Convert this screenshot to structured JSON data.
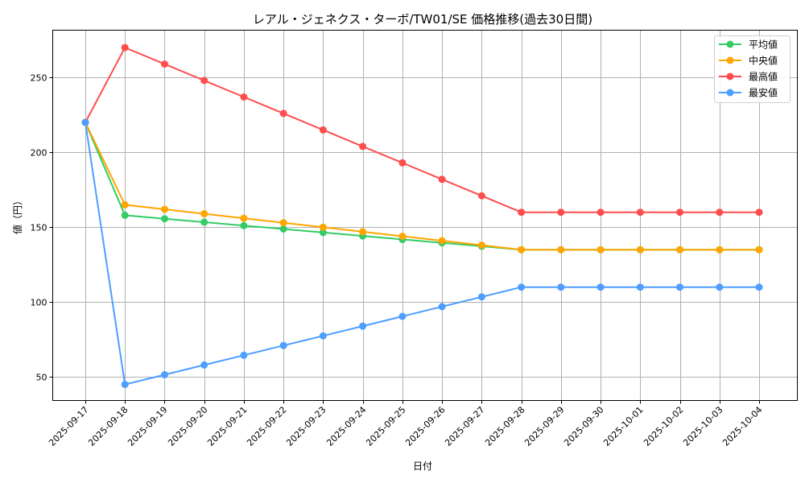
{
  "chart_data": {
    "type": "line",
    "title": "レアル・ジェネクス・ターボ/TW01/SE 価格推移(過去30日間)",
    "xlabel": "日付",
    "ylabel": "値（円）",
    "ylim": [
      34,
      281
    ],
    "yticks": [
      50,
      100,
      150,
      200,
      250
    ],
    "grid": true,
    "legend_position": "upper right",
    "categories": [
      "2025-09-17",
      "2025-09-18",
      "2025-09-19",
      "2025-09-20",
      "2025-09-21",
      "2025-09-22",
      "2025-09-23",
      "2025-09-24",
      "2025-09-25",
      "2025-09-26",
      "2025-09-27",
      "2025-09-28",
      "2025-09-29",
      "2025-09-30",
      "2025-10-01",
      "2025-10-02",
      "2025-10-03",
      "2025-10-04"
    ],
    "series": [
      {
        "name": "平均値",
        "color": "#33cc66",
        "values": [
          220,
          158,
          155.7,
          153.4,
          151.1,
          148.8,
          146.5,
          144.2,
          141.9,
          139.6,
          137.3,
          135,
          135,
          135,
          135,
          135,
          135,
          135
        ]
      },
      {
        "name": "中央値",
        "color": "#ffa500",
        "values": [
          220,
          165,
          162,
          159,
          156,
          153,
          150,
          147,
          144,
          141,
          138,
          135,
          135,
          135,
          135,
          135,
          135,
          135
        ]
      },
      {
        "name": "最高値",
        "color": "#ff4d4d",
        "values": [
          220,
          270,
          259,
          248,
          237,
          226,
          215,
          204,
          193,
          182,
          171,
          160,
          160,
          160,
          160,
          160,
          160,
          160
        ]
      },
      {
        "name": "最安値",
        "color": "#4d9eff",
        "values": [
          220,
          45,
          51.5,
          58,
          64.5,
          71,
          77.5,
          84,
          90.5,
          97,
          103.5,
          110,
          110,
          110,
          110,
          110,
          110,
          110
        ]
      }
    ]
  }
}
